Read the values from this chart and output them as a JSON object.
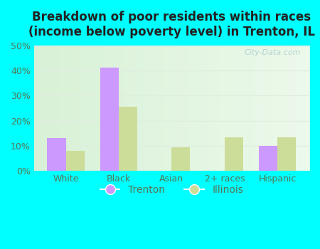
{
  "title": "Breakdown of poor residents within races\n(income below poverty level) in Trenton, IL",
  "categories": [
    "White",
    "Black",
    "Asian",
    "2+ races",
    "Hispanic"
  ],
  "trenton_values": [
    13,
    41,
    0,
    0,
    10
  ],
  "illinois_values": [
    8,
    25.5,
    9.5,
    13.5,
    13.5
  ],
  "trenton_color": "#cc99ff",
  "illinois_color": "#ccdd99",
  "bar_width": 0.35,
  "ylim": [
    0,
    50
  ],
  "yticks": [
    0,
    10,
    20,
    30,
    40,
    50
  ],
  "ytick_labels": [
    "0%",
    "10%",
    "20%",
    "30%",
    "40%",
    "50%"
  ],
  "figure_bg_color": "#00ffff",
  "plot_bg_top": "#c8eec8",
  "plot_bg_bottom": "#e8fae8",
  "grid_color": "#e0ede0",
  "title_fontsize": 12,
  "axis_label_color": "#557755",
  "tick_label_color": "#557755",
  "legend_labels": [
    "Trenton",
    "Illinois"
  ],
  "watermark": "City-Data.com"
}
